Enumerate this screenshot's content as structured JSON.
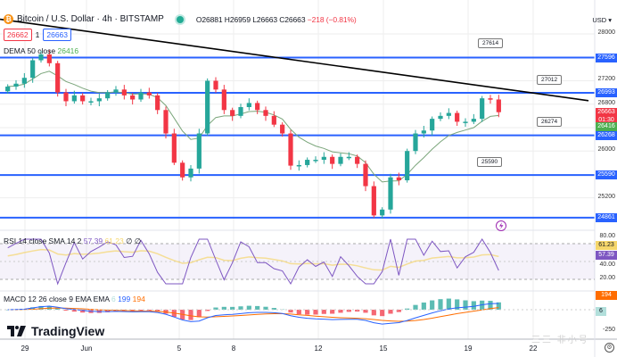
{
  "header": {
    "symbol_title": "Bitcoin / U.S. Dollar · 4h · BITSTAMP",
    "ohlc": {
      "open": "O26881",
      "high": "H26959",
      "low": "L26663",
      "close": "C26663",
      "change": "−218 (−0.81%)"
    },
    "bid": "26662",
    "spread": "1",
    "ask": "26663"
  },
  "indicators": {
    "dema": {
      "label": "DEMA 50 close",
      "value": "26416"
    },
    "rsi": {
      "label": "RSI 14 close SMA 14 2",
      "value": "57.39",
      "sma": "61.23",
      "extra1": "∅",
      "extra2": "∅"
    },
    "macd": {
      "label": "MACD 12 26 close 9 EMA EMA",
      "hist_marker": "6",
      "macd": "199",
      "signal": "194"
    }
  },
  "price_axis": {
    "currency": "USD ▾",
    "ticks": [
      "28000",
      "27200",
      "26800",
      "26000",
      "25200"
    ],
    "tags": [
      {
        "value": "27596",
        "color": "#2962ff"
      },
      {
        "value": "26993",
        "color": "#2962ff"
      },
      {
        "value": "26663",
        "sub": "01:30",
        "color": "#f23645"
      },
      {
        "value": "26416",
        "color": "#4caf50"
      },
      {
        "value": "26268",
        "color": "#2962ff"
      },
      {
        "value": "25590",
        "color": "#2962ff"
      },
      {
        "value": "24861",
        "color": "#2962ff"
      }
    ]
  },
  "rsi_axis": {
    "ticks": [
      "80.00",
      "40.00",
      "20.00"
    ],
    "tags": [
      {
        "value": "61.23",
        "color": "#f5d66b",
        "text_color": "#131722"
      },
      {
        "value": "57.39",
        "color": "#7e57c2",
        "text_color": "#ffffff"
      }
    ]
  },
  "macd_axis": {
    "ticks": [
      "-250"
    ],
    "tags": [
      {
        "value": "194",
        "color": "#ff6d00",
        "text_color": "#ffffff"
      },
      {
        "value": "6",
        "color": "#b2dfdb",
        "text_color": "#131722"
      }
    ]
  },
  "time_axis": {
    "labels": [
      "29",
      "Jun",
      "5",
      "8",
      "12",
      "15",
      "19",
      "22"
    ]
  },
  "callouts": [
    "27614",
    "27012",
    "26274",
    "25590"
  ],
  "branding": {
    "name": "TradingView"
  },
  "watermark": "三三 非小号",
  "colors": {
    "up": "#26a69a",
    "down": "#f23645",
    "hline": "#2962ff",
    "trend": "#000000",
    "dema": "#7aa57a",
    "rsi": "#7e57c2",
    "rsi_sma": "#f5d66b",
    "macd": "#2962ff",
    "signal": "#ff6d00"
  },
  "chart_data": {
    "type": "candlestick",
    "title": "Bitcoin / U.S. Dollar · 4h · BITSTAMP",
    "xlabel": "",
    "ylabel": "USD",
    "ylim": [
      24700,
      28150
    ],
    "x_ticks": [
      "29",
      "Jun",
      "5",
      "8",
      "12",
      "15",
      "19",
      "22"
    ],
    "horizontal_levels": [
      27596,
      26993,
      26268,
      25590,
      24861
    ],
    "trendline": {
      "from": [
        0,
        28250
      ],
      "to": [
        660,
        26860
      ]
    },
    "callouts": [
      {
        "label": "27614",
        "y": 27596
      },
      {
        "label": "27012",
        "y": 26993
      },
      {
        "label": "26274",
        "y": 26268
      },
      {
        "label": "25590",
        "y": 25590
      }
    ],
    "last": {
      "open": 26881,
      "high": 26959,
      "low": 26663,
      "close": 26663,
      "change": -218,
      "change_pct": -0.81
    },
    "series": [
      {
        "name": "DEMA 50 close",
        "last": 26416
      },
      {
        "name": "RSI 14",
        "last": 57.39,
        "sma": 61.23,
        "range": [
          0,
          100
        ],
        "bands": [
          70,
          30
        ]
      },
      {
        "name": "MACD 12 26 9",
        "macd": 199,
        "signal": 194,
        "hist": 6
      }
    ],
    "approx_close_path": [
      27100,
      27150,
      27250,
      27550,
      27650,
      27500,
      27000,
      26850,
      26950,
      26850,
      26850,
      26900,
      27000,
      27050,
      26950,
      26880,
      27000,
      26950,
      26700,
      26300,
      25800,
      25550,
      25700,
      26300,
      27200,
      27050,
      26700,
      26600,
      26750,
      26820,
      26700,
      26600,
      26450,
      26300,
      25750,
      25760,
      25850,
      25850,
      25900,
      25780,
      25900,
      25900,
      25780,
      25400,
      24900,
      25000,
      25550,
      25500,
      26000,
      26300,
      26350,
      26550,
      26600,
      26650,
      26500,
      26500,
      26550,
      26900,
      26880,
      26663
    ]
  }
}
